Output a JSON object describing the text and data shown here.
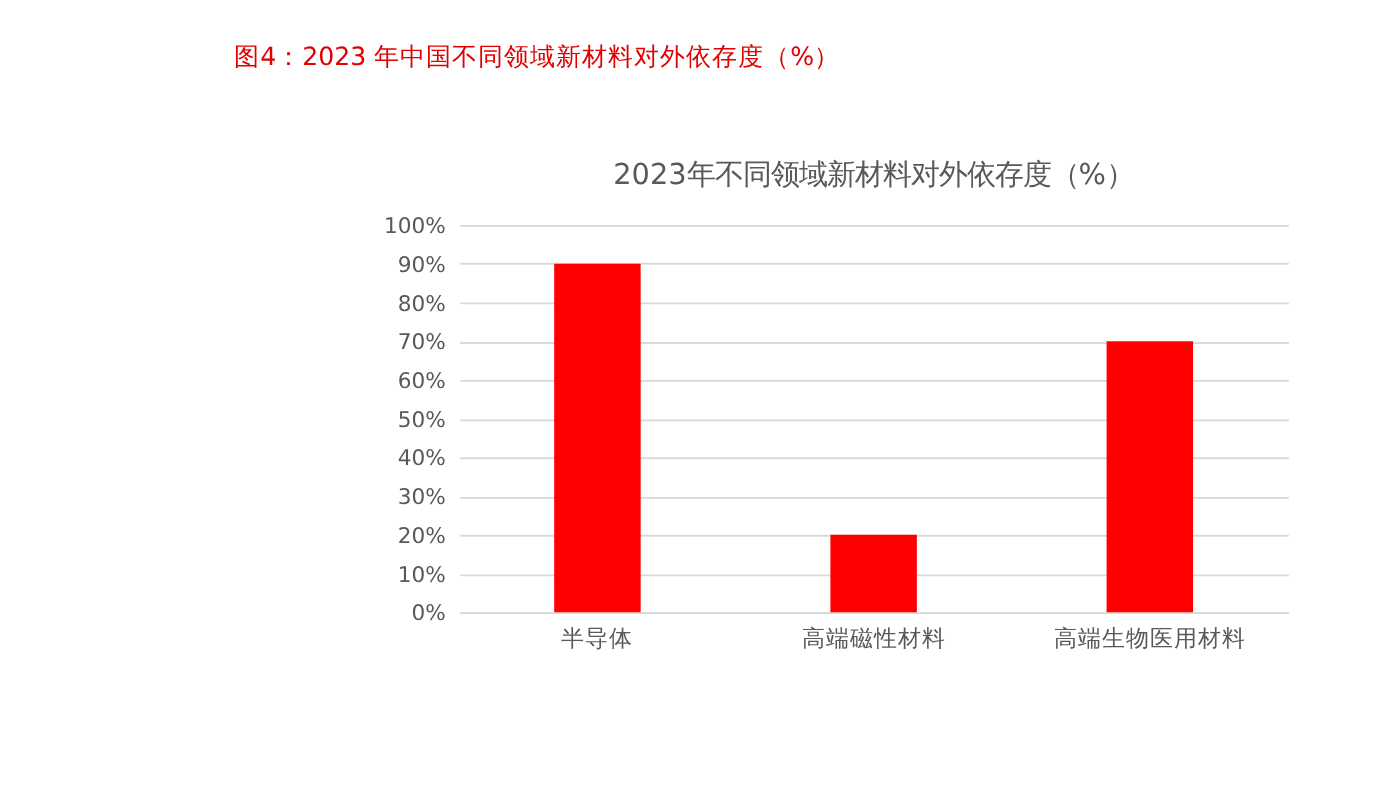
{
  "chart_data": {
    "type": "bar",
    "title": "图4：2023 年中国不同领域新材料对外依存度（%）",
    "subtitle": "2023年不同领域新材料对外依存度（%）",
    "categories": [
      "半导体",
      "高端磁性材料",
      "高端生物医用材料"
    ],
    "values": [
      90,
      20,
      70
    ],
    "color": "#ff0000",
    "ylim": [
      0,
      100
    ],
    "yticks": [
      {
        "value": 0,
        "label": "0%"
      },
      {
        "value": 10,
        "label": "10%"
      },
      {
        "value": 20,
        "label": "20%"
      },
      {
        "value": 30,
        "label": "30%"
      },
      {
        "value": 40,
        "label": "40%"
      },
      {
        "value": 50,
        "label": "50%"
      },
      {
        "value": 60,
        "label": "60%"
      },
      {
        "value": 70,
        "label": "70%"
      },
      {
        "value": 80,
        "label": "80%"
      },
      {
        "value": 90,
        "label": "90%"
      },
      {
        "value": 100,
        "label": "100%"
      }
    ],
    "grid": "y"
  }
}
